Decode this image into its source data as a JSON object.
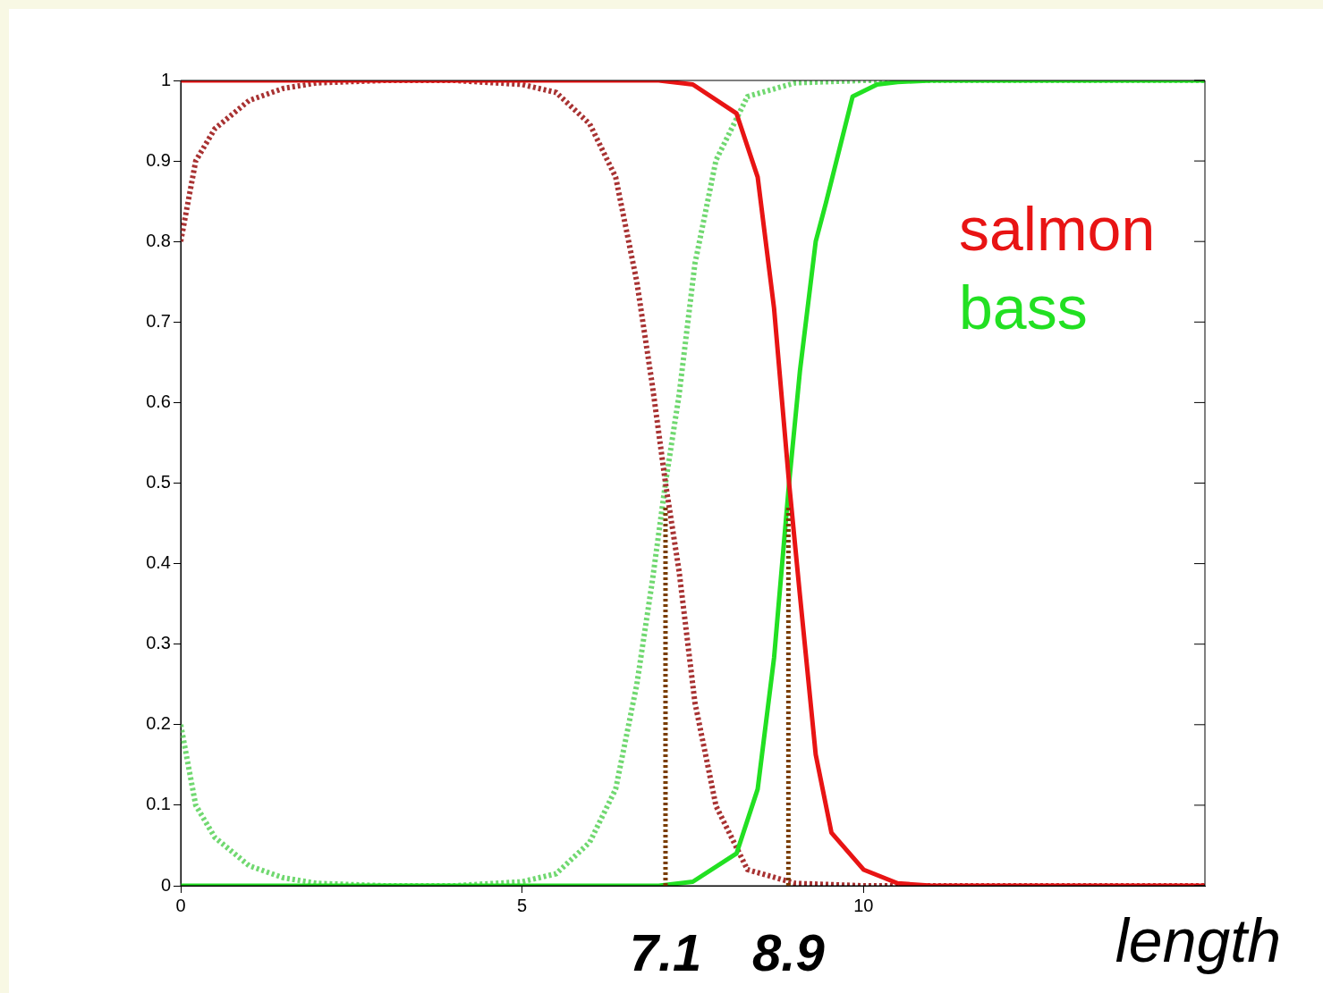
{
  "chart_data": {
    "type": "line",
    "xlabel": "length",
    "xlim": [
      0,
      15
    ],
    "xticks": [
      0,
      5,
      10
    ],
    "ylim": [
      0,
      1
    ],
    "yticks": [
      0,
      0.1,
      0.2,
      0.3,
      0.4,
      0.5,
      0.6,
      0.7,
      0.8,
      0.9,
      1
    ],
    "grid": false,
    "legend": "right",
    "marker": "none",
    "series": [
      {
        "name": "salmon",
        "color": "#e81414",
        "line_style": "solid",
        "x": [
          0,
          5,
          7,
          7.5,
          8.14,
          8.45,
          8.69,
          8.91,
          9.07,
          9.3,
          9.53,
          10,
          10.5,
          11,
          15
        ],
        "values": [
          1,
          1,
          1,
          0.995,
          0.959,
          0.88,
          0.717,
          0.5,
          0.36,
          0.163,
          0.066,
          0.02,
          0.003,
          0,
          0
        ]
      },
      {
        "name": "bass",
        "color": "#22e022",
        "line_style": "solid",
        "x": [
          0,
          5,
          7,
          7.5,
          8.14,
          8.45,
          8.69,
          8.91,
          9.07,
          9.3,
          9.45,
          9.84,
          10.2,
          10.5,
          11,
          15
        ],
        "values": [
          0,
          0,
          0,
          0.005,
          0.04,
          0.12,
          0.283,
          0.5,
          0.64,
          0.8,
          0.848,
          0.98,
          0.995,
          0.998,
          1,
          1
        ]
      },
      {
        "color": "#a83232",
        "line_style": "dotted",
        "x": [
          0,
          0.22,
          0.5,
          1,
          1.5,
          2,
          3,
          4,
          5,
          5.5,
          5.99,
          6.37,
          6.68,
          6.91,
          7.1,
          7.3,
          7.53,
          7.84,
          8.3,
          9,
          10,
          15
        ],
        "values": [
          0.8,
          0.9,
          0.94,
          0.975,
          0.99,
          0.997,
          1,
          1,
          0.995,
          0.985,
          0.946,
          0.88,
          0.75,
          0.62,
          0.5,
          0.39,
          0.228,
          0.099,
          0.02,
          0.003,
          0,
          0
        ]
      },
      {
        "color": "#70d870",
        "line_style": "dotted",
        "x": [
          0,
          0.22,
          0.5,
          1,
          1.5,
          2,
          3,
          4,
          5,
          5.5,
          5.99,
          6.37,
          6.68,
          6.91,
          7.1,
          7.3,
          7.53,
          7.84,
          8.3,
          9,
          10,
          15
        ],
        "values": [
          0.2,
          0.1,
          0.06,
          0.025,
          0.01,
          0.003,
          0,
          0,
          0.005,
          0.015,
          0.054,
          0.12,
          0.25,
          0.38,
          0.5,
          0.61,
          0.772,
          0.901,
          0.98,
          0.997,
          1,
          1
        ]
      }
    ],
    "ref_lines": [
      {
        "axis": "x",
        "value": 7.1,
        "label": "7.1",
        "color": "#7a3d00",
        "line_style": "dotted"
      },
      {
        "axis": "x",
        "value": 8.9,
        "label": "8.9",
        "color": "#7a3d00",
        "line_style": "dotted"
      }
    ]
  }
}
